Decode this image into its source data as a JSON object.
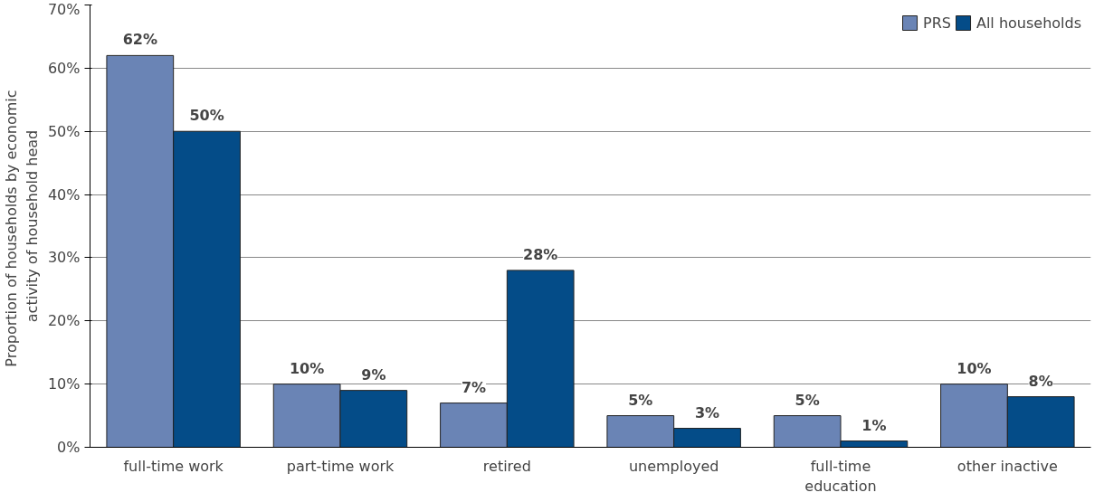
{
  "chart_data": {
    "type": "bar",
    "ylabel": "Proportion  of households by economic\nactivity of household head",
    "categories": [
      "full-time work",
      "part-time work",
      "retired",
      "unemployed",
      "full-time education",
      "other inactive"
    ],
    "series": [
      {
        "name": "PRS",
        "color": "#6a84b5",
        "values": [
          62,
          10,
          7,
          5,
          5,
          10
        ],
        "value_labels": [
          "62%",
          "10%",
          "7%",
          "5%",
          "5%",
          "10%"
        ]
      },
      {
        "name": "All households",
        "color": "#044c88",
        "values": [
          50,
          9,
          28,
          3,
          1,
          8
        ],
        "value_labels": [
          "50%",
          "9%",
          "28%",
          "3%",
          "1%",
          "8%"
        ]
      }
    ],
    "ylim": [
      0,
      70
    ],
    "yticks": [
      {
        "value": 0,
        "label": "0%"
      },
      {
        "value": 10,
        "label": "10%"
      },
      {
        "value": 20,
        "label": "20%"
      },
      {
        "value": 30,
        "label": "30%"
      },
      {
        "value": 40,
        "label": "40%"
      },
      {
        "value": 50,
        "label": "50%"
      },
      {
        "value": 60,
        "label": "60%"
      },
      {
        "value": 70,
        "label": "70%"
      }
    ],
    "grid": "y",
    "legend": "top right"
  }
}
